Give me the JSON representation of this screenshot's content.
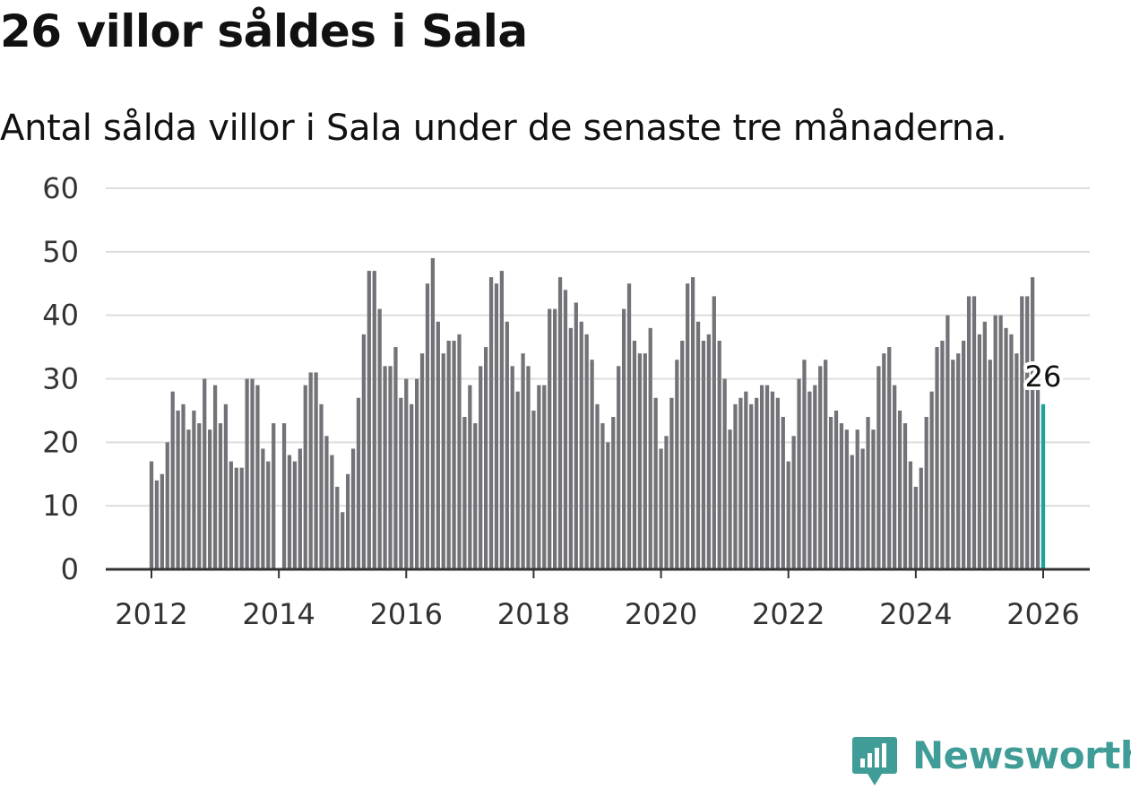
{
  "header": {
    "title": "26 villor såldes i Sala",
    "subtitle": "Antal sålda villor i Sala under de senaste tre månaderna."
  },
  "brand": {
    "name": "Newsworthy",
    "color": "#3f9c97"
  },
  "colors": {
    "bar": "#737278",
    "highlight": "#1aa39a",
    "grid": "#dddddd",
    "axis": "#333333"
  },
  "chart_data": {
    "type": "bar",
    "title": "26 villor såldes i Sala",
    "subtitle": "Antal sålda villor i Sala under de senaste tre månaderna.",
    "xlabel": "",
    "ylabel": "",
    "ylim": [
      0,
      60
    ],
    "yticks": [
      "0",
      "10",
      "20",
      "30",
      "40",
      "50",
      "60"
    ],
    "xticks": [
      "2012",
      "2014",
      "2016",
      "2018",
      "2020",
      "2022",
      "2024",
      "2026"
    ],
    "x_start": "2012-01",
    "x_end": "2026-01",
    "grid": true,
    "highlight_label": "26",
    "values": [
      17,
      14,
      15,
      20,
      28,
      25,
      26,
      22,
      25,
      23,
      30,
      22,
      29,
      23,
      26,
      17,
      16,
      16,
      30,
      30,
      29,
      19,
      17,
      23,
      0,
      23,
      18,
      17,
      19,
      29,
      31,
      31,
      26,
      21,
      18,
      13,
      9,
      15,
      19,
      27,
      37,
      47,
      47,
      41,
      32,
      32,
      35,
      27,
      30,
      26,
      30,
      34,
      45,
      49,
      39,
      34,
      36,
      36,
      37,
      24,
      29,
      23,
      32,
      35,
      46,
      45,
      47,
      39,
      32,
      28,
      34,
      32,
      25,
      29,
      29,
      41,
      41,
      46,
      44,
      38,
      42,
      39,
      37,
      33,
      26,
      23,
      20,
      24,
      32,
      41,
      45,
      36,
      34,
      34,
      38,
      27,
      19,
      21,
      27,
      33,
      36,
      45,
      46,
      39,
      36,
      37,
      43,
      36,
      30,
      22,
      26,
      27,
      28,
      26,
      27,
      29,
      29,
      28,
      27,
      24,
      17,
      21,
      30,
      33,
      28,
      29,
      32,
      33,
      24,
      25,
      23,
      22,
      18,
      22,
      19,
      24,
      22,
      32,
      34,
      35,
      29,
      25,
      23,
      17,
      13,
      16,
      24,
      28,
      35,
      36,
      40,
      33,
      34,
      36,
      43,
      43,
      37,
      39,
      33,
      40,
      40,
      38,
      37,
      34,
      43,
      43,
      46,
      30,
      26
    ]
  }
}
